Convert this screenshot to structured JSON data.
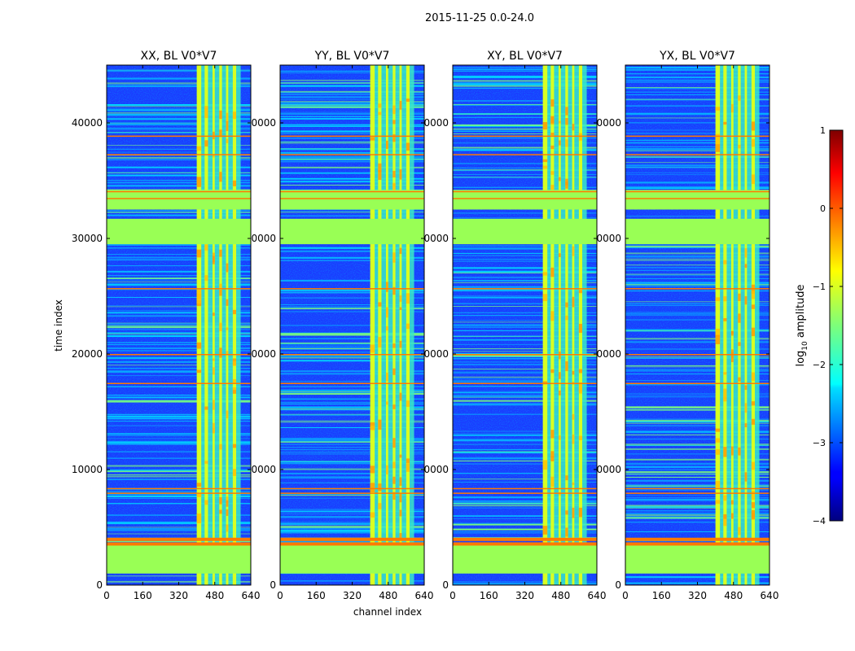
{
  "figure": {
    "suptitle": "2015-11-25 0.0-24.0"
  },
  "chart_data": {
    "type": "heatmap",
    "xlabel": "channel index",
    "ylabel": "time index",
    "xlim": [
      0,
      640
    ],
    "ylim": [
      0,
      45000
    ],
    "xticks": [
      0,
      160,
      320,
      480,
      640
    ],
    "xtick_labels": [
      "0",
      "160",
      "320",
      "480",
      "640"
    ],
    "yticks": [
      0,
      10000,
      20000,
      30000,
      40000
    ],
    "ytick_labels": [
      "0",
      "10000",
      "20000",
      "30000",
      "40000"
    ],
    "ytick_labels_truncated": [
      "0",
      "0000",
      "0000",
      "0000",
      "0000"
    ],
    "panels": [
      {
        "title": "XX, BL V0*V7"
      },
      {
        "title": "YY, BL V0*V7"
      },
      {
        "title": "XY, BL V0*V7"
      },
      {
        "title": "YX, BL V0*V7"
      }
    ],
    "colorbar": {
      "label": "log10 amplitude",
      "label_main": "log",
      "label_sub": "10",
      "label_tail": " amplitude",
      "range": [
        -4,
        1
      ],
      "ticks": [
        1,
        0,
        -1,
        -2,
        -3,
        -4
      ],
      "tick_labels": [
        "1",
        "0",
        "−1",
        "−2",
        "−3",
        "−4"
      ],
      "colormap": "jet"
    },
    "structure": {
      "rfi_band_channels": [
        405,
        595
      ],
      "rfi_stripes_channels": [
        [
          400,
          420
        ],
        [
          435,
          450
        ],
        [
          470,
          480
        ],
        [
          500,
          512
        ],
        [
          530,
          540
        ],
        [
          560,
          575
        ]
      ],
      "flagged_time_bands": [
        [
          1000,
          3500
        ],
        [
          32500,
          34200
        ],
        [
          29500,
          31700
        ]
      ],
      "strong_rows": [
        3700,
        4100,
        8000,
        8400,
        17500,
        20000,
        25700,
        33500,
        34100,
        37300,
        38900
      ]
    }
  }
}
